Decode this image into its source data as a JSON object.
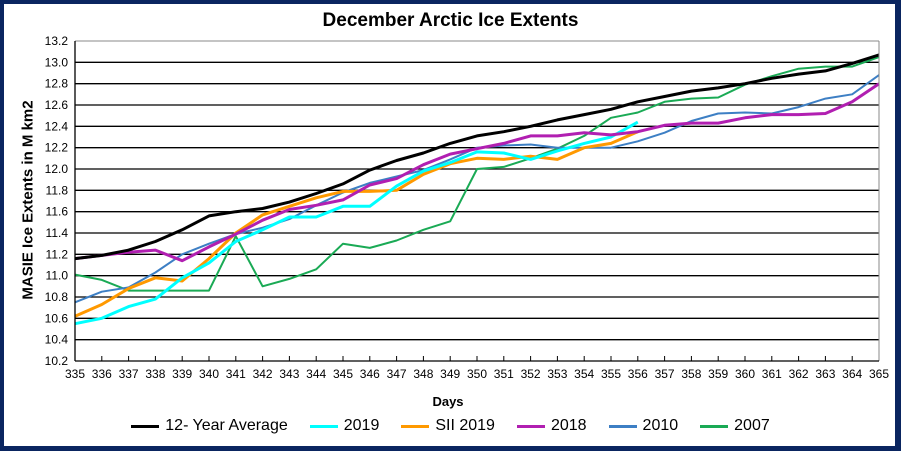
{
  "chart_data": {
    "type": "line",
    "title": "December Arctic Ice Extents",
    "xlabel": "Days",
    "ylabel": "MASIE Ice Extents in M km2",
    "xlim": [
      335,
      365
    ],
    "ylim": [
      10.2,
      13.2
    ],
    "y_ticks": [
      "10.2",
      "10.4",
      "10.6",
      "10.8",
      "11.0",
      "11.2",
      "11.4",
      "11.6",
      "11.8",
      "12.0",
      "12.2",
      "12.4",
      "12.6",
      "12.8",
      "13.0",
      "13.2"
    ],
    "x_ticks": [
      "335",
      "336",
      "337",
      "338",
      "339",
      "340",
      "341",
      "342",
      "343",
      "344",
      "345",
      "346",
      "347",
      "348",
      "349",
      "350",
      "351",
      "352",
      "353",
      "354",
      "355",
      "356",
      "357",
      "358",
      "359",
      "360",
      "361",
      "362",
      "363",
      "364",
      "365"
    ],
    "grid": true,
    "legend_position": "bottom",
    "series": [
      {
        "name": "12- Year Average",
        "color": "#000000",
        "width": 3,
        "x": [
          335,
          336,
          337,
          338,
          339,
          340,
          341,
          342,
          343,
          344,
          345,
          346,
          347,
          348,
          349,
          350,
          351,
          352,
          353,
          354,
          355,
          356,
          357,
          358,
          359,
          360,
          361,
          362,
          363,
          364,
          365
        ],
        "values": [
          11.16,
          11.19,
          11.24,
          11.32,
          11.43,
          11.56,
          11.6,
          11.63,
          11.69,
          11.77,
          11.86,
          11.99,
          12.08,
          12.15,
          12.24,
          12.31,
          12.35,
          12.4,
          12.46,
          12.51,
          12.56,
          12.63,
          12.68,
          12.73,
          12.76,
          12.8,
          12.85,
          12.89,
          12.92,
          12.99,
          13.07
        ]
      },
      {
        "name": "2019",
        "color": "#00ffff",
        "width": 3,
        "x": [
          335,
          336,
          337,
          338,
          339,
          340,
          341,
          342,
          343,
          344,
          345,
          346,
          347,
          348,
          349,
          350,
          351,
          352,
          353,
          354,
          355,
          356
        ],
        "values": [
          10.55,
          10.6,
          10.71,
          10.78,
          10.98,
          11.12,
          11.32,
          11.43,
          11.55,
          11.55,
          11.65,
          11.65,
          11.84,
          11.98,
          12.06,
          12.16,
          12.15,
          12.09,
          12.17,
          12.24,
          12.3,
          12.44
        ]
      },
      {
        "name": "SII 2019",
        "color": "#ff9900",
        "width": 3,
        "x": [
          335,
          336,
          337,
          338,
          339,
          340,
          341,
          342,
          343,
          344,
          345,
          346,
          347,
          348,
          349,
          350,
          351,
          352,
          353,
          354,
          355,
          356
        ],
        "values": [
          10.62,
          10.73,
          10.88,
          10.98,
          10.95,
          11.16,
          11.4,
          11.57,
          11.65,
          11.73,
          11.79,
          11.79,
          11.8,
          11.95,
          12.05,
          12.1,
          12.09,
          12.12,
          12.09,
          12.2,
          12.24,
          12.35
        ]
      },
      {
        "name": "2018",
        "color": "#b11fb1",
        "width": 3,
        "x": [
          335,
          336,
          337,
          338,
          339,
          340,
          341,
          342,
          343,
          344,
          345,
          346,
          347,
          348,
          349,
          350,
          351,
          352,
          353,
          354,
          355,
          356,
          357,
          358,
          359,
          360,
          361,
          362,
          363,
          364,
          365
        ],
        "values": [
          11.16,
          11.19,
          11.22,
          11.24,
          11.14,
          11.27,
          11.39,
          11.52,
          11.62,
          11.66,
          11.71,
          11.85,
          11.91,
          12.04,
          12.14,
          12.19,
          12.24,
          12.31,
          12.31,
          12.34,
          12.32,
          12.35,
          12.41,
          12.43,
          12.43,
          12.48,
          12.51,
          12.51,
          12.52,
          12.63,
          12.8
        ]
      },
      {
        "name": "2010",
        "color": "#3d7fc4",
        "width": 2,
        "x": [
          335,
          336,
          337,
          338,
          339,
          340,
          341,
          342,
          343,
          344,
          345,
          346,
          347,
          348,
          349,
          350,
          351,
          352,
          353,
          354,
          355,
          356,
          357,
          358,
          359,
          360,
          361,
          362,
          363,
          364,
          365
        ],
        "values": [
          10.75,
          10.85,
          10.89,
          11.03,
          11.2,
          11.3,
          11.39,
          11.45,
          11.53,
          11.66,
          11.78,
          11.87,
          11.93,
          11.99,
          12.09,
          12.2,
          12.22,
          12.23,
          12.2,
          12.2,
          12.2,
          12.26,
          12.34,
          12.45,
          12.52,
          12.53,
          12.52,
          12.58,
          12.66,
          12.7,
          12.88
        ]
      },
      {
        "name": "2007",
        "color": "#1aaa55",
        "width": 2,
        "x": [
          335,
          336,
          337,
          338,
          339,
          340,
          341,
          342,
          343,
          344,
          345,
          346,
          347,
          348,
          349,
          350,
          351,
          352,
          353,
          354,
          355,
          356,
          357,
          358,
          359,
          360,
          361,
          362,
          363,
          364,
          365
        ],
        "values": [
          11.01,
          10.96,
          10.86,
          10.86,
          10.86,
          10.86,
          11.37,
          10.9,
          10.97,
          11.06,
          11.3,
          11.26,
          11.33,
          11.43,
          11.51,
          12.0,
          12.02,
          12.1,
          12.19,
          12.31,
          12.48,
          12.53,
          12.63,
          12.66,
          12.67,
          12.79,
          12.87,
          12.94,
          12.96,
          12.96,
          13.05
        ]
      }
    ]
  }
}
